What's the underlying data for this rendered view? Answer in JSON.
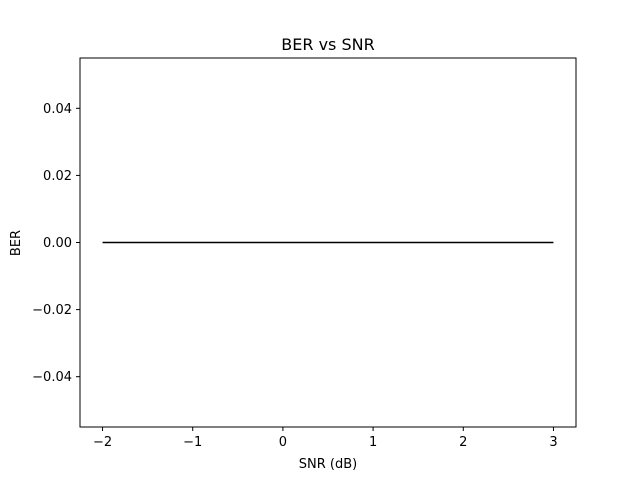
{
  "chart_data": {
    "type": "line",
    "title": "BER vs SNR",
    "xlabel": "SNR (dB)",
    "ylabel": "BER",
    "xlim": [
      -2.25,
      3.25
    ],
    "ylim": [
      -0.055,
      0.055
    ],
    "x_ticks": [
      -2,
      -1,
      0,
      1,
      2,
      3
    ],
    "x_tick_labels": [
      "−2",
      "−1",
      "0",
      "1",
      "2",
      "3"
    ],
    "y_ticks": [
      -0.04,
      -0.02,
      0.0,
      0.02,
      0.04
    ],
    "y_tick_labels": [
      "−0.04",
      "−0.02",
      "0.00",
      "0.02",
      "0.04"
    ],
    "grid": false,
    "series": [
      {
        "color": "#000000",
        "x": [
          -2,
          -1,
          0,
          1,
          2,
          3
        ],
        "y": [
          0,
          0,
          0,
          0,
          0,
          0
        ]
      }
    ]
  }
}
